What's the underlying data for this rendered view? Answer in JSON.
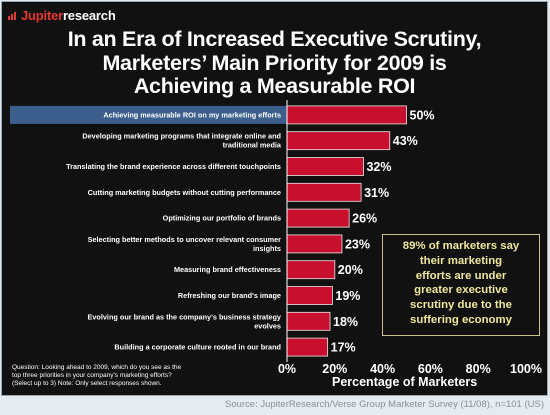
{
  "logo": {
    "brand_prefix": "Jupiter",
    "brand_suffix": "research",
    "brand_color": "#e53a2f"
  },
  "title_lines": [
    "In an Era of Increased Executive Scrutiny,",
    "Marketers’ Main Priority for 2009 is",
    "Achieving a Measurable ROI"
  ],
  "chart_data": {
    "type": "bar",
    "orientation": "horizontal",
    "categories": [
      [
        "Achieving measurable ROI on my marketing efforts"
      ],
      [
        "Developing marketing programs that integrate online and",
        "traditional media"
      ],
      [
        "Translating the brand experience across different touchpoints"
      ],
      [
        "Cutting marketing budgets without cutting performance"
      ],
      [
        "Optimizing our portfolio of brands"
      ],
      [
        "Selecting better methods to uncover relevant consumer",
        "insights"
      ],
      [
        "Measuring brand effectiveness"
      ],
      [
        "Refreshing our brand's image"
      ],
      [
        "Evolving our brand as the company's business strategy",
        "evolves"
      ],
      [
        "Building a corporate culture rooted in our brand"
      ]
    ],
    "values": [
      50,
      43,
      32,
      31,
      26,
      23,
      20,
      19,
      18,
      17
    ],
    "value_labels": [
      "50%",
      "43%",
      "32%",
      "31%",
      "26%",
      "23%",
      "20%",
      "19%",
      "18%",
      "17%"
    ],
    "highlight_index": 0,
    "xlim": [
      0,
      100
    ],
    "xticks": [
      "0%",
      "20%",
      "40%",
      "60%",
      "80%",
      "100%"
    ],
    "xlabel": "Percentage of Marketers",
    "bar_color": "#c8102e",
    "highlight_color": "#3b5e8c"
  },
  "callout_lines": [
    "89% of marketers say",
    "their marketing",
    "efforts are under",
    "greater executive",
    "scrutiny due to the",
    "suffering economy"
  ],
  "question_lines": [
    "Question: Looking ahead to 2009, which do you see as the",
    "top three priorities in your company's marketing efforts?",
    "(Select up to 3) Note: Only select responses shown."
  ],
  "source": "Source: JupiterResearch/Verse Group Marketer Survey (11/08), n=101 (US)"
}
